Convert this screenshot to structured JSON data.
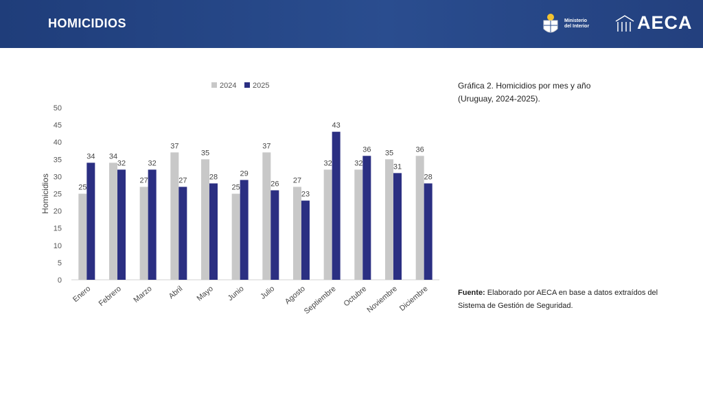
{
  "header": {
    "title": "HOMICIDIOS",
    "ministerio_line1": "Ministerio",
    "ministerio_line2": "del Interior",
    "brand": "AECA"
  },
  "caption": {
    "line1": "Gráfica 2. Homicidios por mes y año",
    "line2": "(Uruguay, 2024-2025)."
  },
  "source": {
    "label": "Fuente:",
    "text": " Elaborado por AECA en base a datos extraídos del Sistema de Gestión de Seguridad."
  },
  "colors": {
    "header_bg": "#253f7e",
    "series_2024": "#c8c8c8",
    "series_2025": "#2b2f82"
  },
  "chart_data": {
    "type": "bar",
    "title": "",
    "xlabel": "",
    "ylabel": "Homicidios",
    "ylim": [
      0,
      50
    ],
    "yticks": [
      0,
      5,
      10,
      15,
      20,
      25,
      30,
      35,
      40,
      45,
      50
    ],
    "legend_position": "top",
    "categories": [
      "Enero",
      "Febrero",
      "Marzo",
      "Abril",
      "Mayo",
      "Junio",
      "Julio",
      "Agosto",
      "Septiembre",
      "Octubre",
      "Noviembre",
      "Diciembre"
    ],
    "series": [
      {
        "name": "2024",
        "color": "#c8c8c8",
        "values": [
          25,
          34,
          27,
          37,
          35,
          25,
          37,
          27,
          32,
          32,
          35,
          36
        ]
      },
      {
        "name": "2025",
        "color": "#2b2f82",
        "values": [
          34,
          32,
          32,
          27,
          28,
          29,
          26,
          23,
          43,
          36,
          31,
          28
        ]
      }
    ]
  }
}
